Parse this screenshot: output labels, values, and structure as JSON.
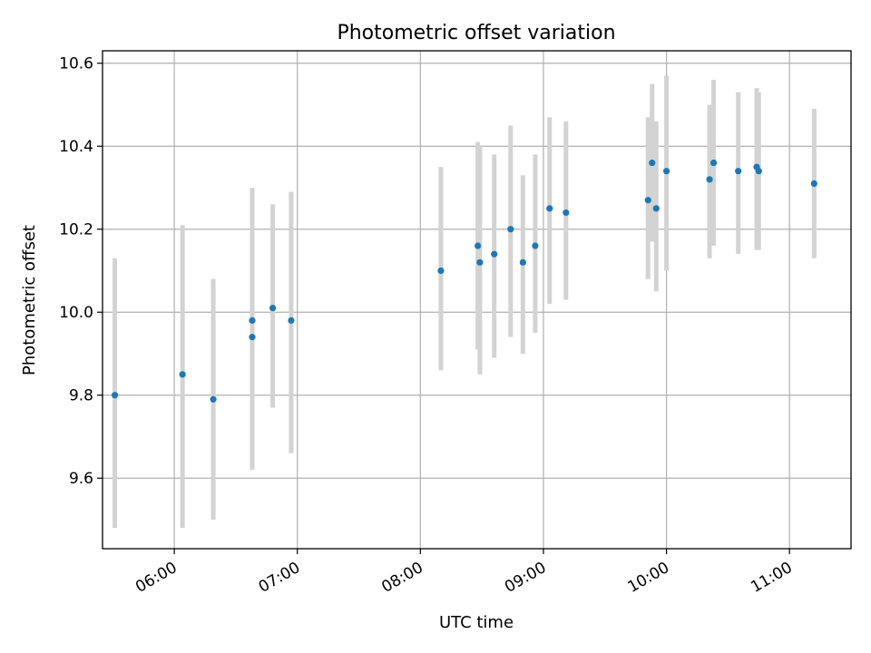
{
  "chart_data": {
    "type": "scatter",
    "title": "Photometric offset variation",
    "xlabel": "UTC time",
    "ylabel": "Photometric offset",
    "grid": true,
    "xlim": [
      "05:25",
      "11:30"
    ],
    "ylim": [
      9.43,
      10.63
    ],
    "x_ticks": [
      "06:00",
      "07:00",
      "08:00",
      "09:00",
      "10:00",
      "11:00"
    ],
    "y_ticks": [
      9.6,
      9.8,
      10.0,
      10.2,
      10.4,
      10.6
    ],
    "y_tick_labels": [
      "9.6",
      "9.8",
      "10.0",
      "10.2",
      "10.4",
      "10.6"
    ],
    "colors": {
      "points": "#1f77b4",
      "error_bars": "#d3d3d3",
      "grid": "#b0b0b0"
    },
    "points": [
      {
        "x": "05:31",
        "y": 9.8,
        "ylow": 9.48,
        "yhigh": 10.13
      },
      {
        "x": "06:04",
        "y": 9.85,
        "ylow": 9.48,
        "yhigh": 10.21
      },
      {
        "x": "06:19",
        "y": 9.79,
        "ylow": 9.5,
        "yhigh": 10.08
      },
      {
        "x": "06:38",
        "y": 9.98,
        "ylow": 9.66,
        "yhigh": 10.3
      },
      {
        "x": "06:38",
        "y": 9.94,
        "ylow": 9.62,
        "yhigh": 10.27
      },
      {
        "x": "06:48",
        "y": 10.01,
        "ylow": 9.77,
        "yhigh": 10.26
      },
      {
        "x": "06:57",
        "y": 9.98,
        "ylow": 9.66,
        "yhigh": 10.29
      },
      {
        "x": "08:10",
        "y": 10.1,
        "ylow": 9.86,
        "yhigh": 10.35
      },
      {
        "x": "08:28",
        "y": 10.16,
        "ylow": 9.91,
        "yhigh": 10.41
      },
      {
        "x": "08:29",
        "y": 10.12,
        "ylow": 9.85,
        "yhigh": 10.4
      },
      {
        "x": "08:36",
        "y": 10.14,
        "ylow": 9.89,
        "yhigh": 10.38
      },
      {
        "x": "08:44",
        "y": 10.2,
        "ylow": 9.94,
        "yhigh": 10.45
      },
      {
        "x": "08:50",
        "y": 10.12,
        "ylow": 9.9,
        "yhigh": 10.33
      },
      {
        "x": "08:56",
        "y": 10.16,
        "ylow": 9.95,
        "yhigh": 10.38
      },
      {
        "x": "09:03",
        "y": 10.25,
        "ylow": 10.02,
        "yhigh": 10.47
      },
      {
        "x": "09:11",
        "y": 10.24,
        "ylow": 10.03,
        "yhigh": 10.46
      },
      {
        "x": "09:51",
        "y": 10.27,
        "ylow": 10.08,
        "yhigh": 10.47
      },
      {
        "x": "09:53",
        "y": 10.36,
        "ylow": 10.17,
        "yhigh": 10.55
      },
      {
        "x": "09:55",
        "y": 10.25,
        "ylow": 10.05,
        "yhigh": 10.46
      },
      {
        "x": "10:00",
        "y": 10.34,
        "ylow": 10.1,
        "yhigh": 10.57
      },
      {
        "x": "10:21",
        "y": 10.32,
        "ylow": 10.13,
        "yhigh": 10.5
      },
      {
        "x": "10:23",
        "y": 10.36,
        "ylow": 10.16,
        "yhigh": 10.56
      },
      {
        "x": "10:35",
        "y": 10.34,
        "ylow": 10.14,
        "yhigh": 10.53
      },
      {
        "x": "10:44",
        "y": 10.35,
        "ylow": 10.15,
        "yhigh": 10.54
      },
      {
        "x": "10:45",
        "y": 10.34,
        "ylow": 10.15,
        "yhigh": 10.53
      },
      {
        "x": "11:12",
        "y": 10.31,
        "ylow": 10.13,
        "yhigh": 10.49
      }
    ]
  }
}
